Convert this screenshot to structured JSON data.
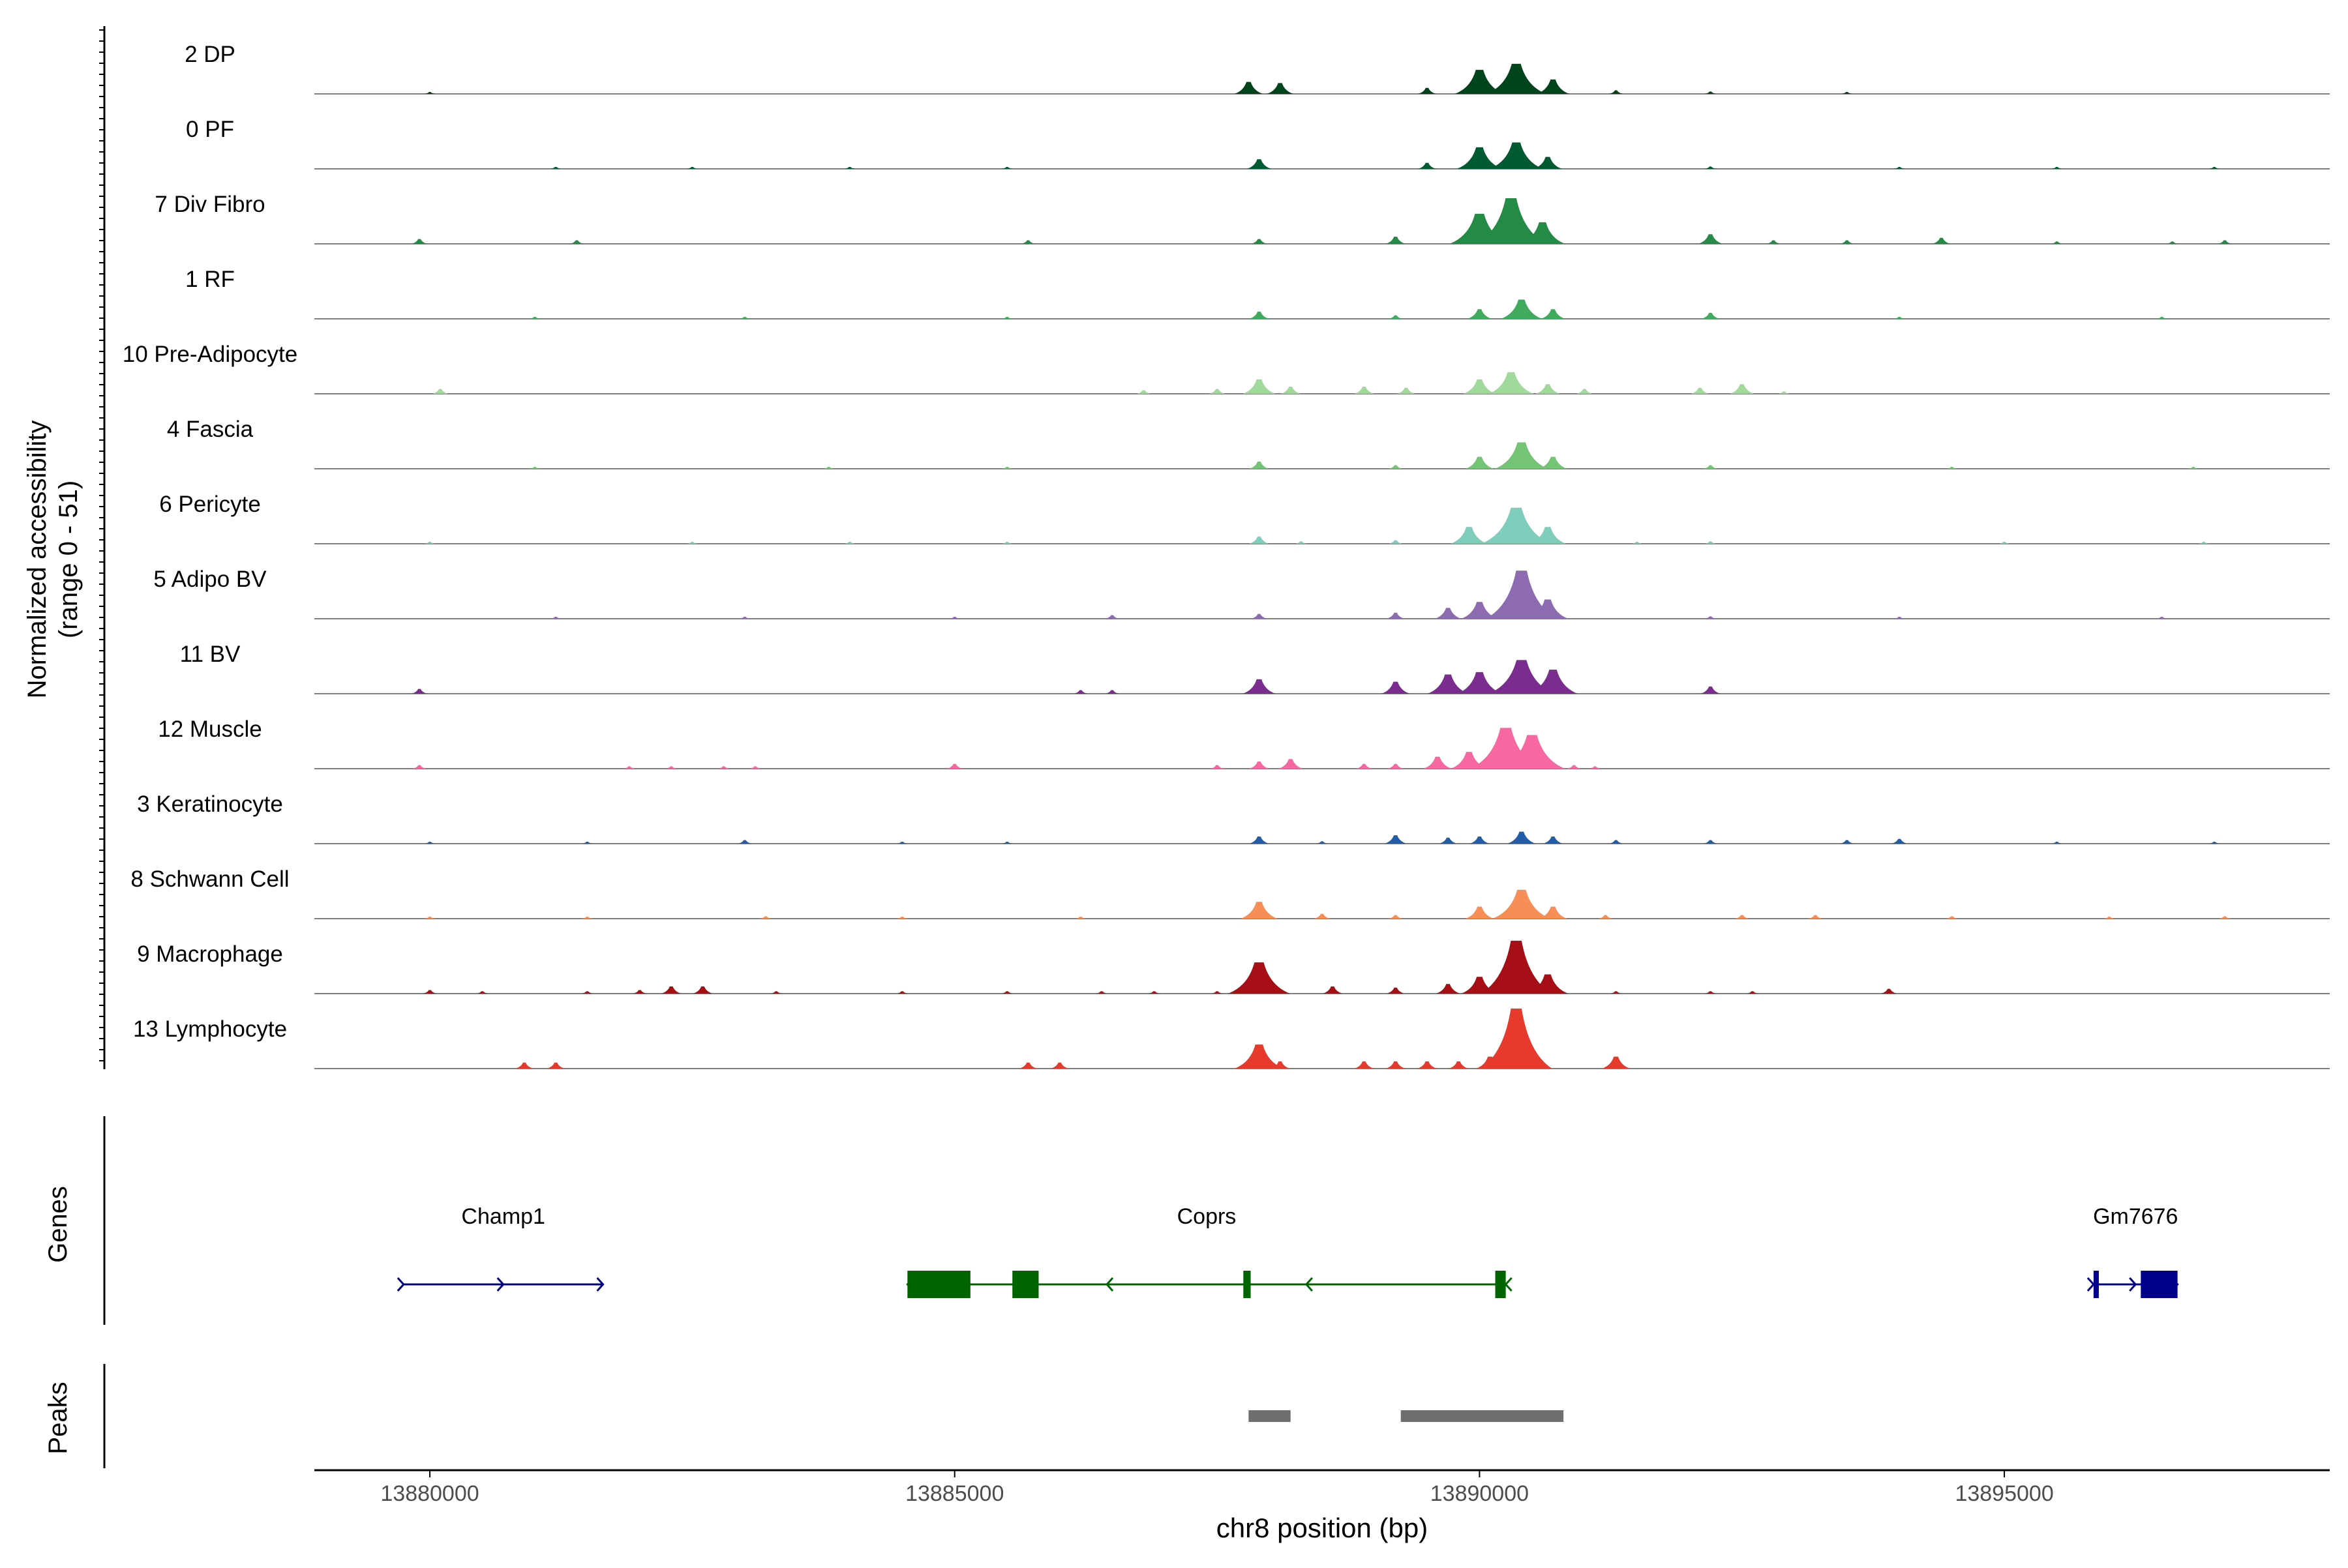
{
  "chart_data": {
    "type": "area",
    "title": "",
    "ylabel_line1": "Normalized accessibility",
    "ylabel_line2": "(range 0 - 51)",
    "y_range": [
      0,
      51
    ],
    "xlabel": "chr8 position (bp)",
    "xlim": [
      13878900,
      13898100
    ],
    "xticks": [
      13880000,
      13885000,
      13890000,
      13895000
    ],
    "xtick_labels": [
      "13880000",
      "13885000",
      "13890000",
      "13895000"
    ],
    "tracks": [
      {
        "name": "2 DP",
        "color": "#00441b",
        "peaks": [
          [
            13880000,
            1.5
          ],
          [
            13887800,
            10
          ],
          [
            13888100,
            9
          ],
          [
            13889500,
            5
          ],
          [
            13890000,
            20
          ],
          [
            13890350,
            25
          ],
          [
            13890700,
            12
          ],
          [
            13891300,
            3
          ],
          [
            13892200,
            2
          ],
          [
            13893500,
            1.5
          ]
        ]
      },
      {
        "name": "0 PF",
        "color": "#005a32",
        "peaks": [
          [
            13881200,
            1.5
          ],
          [
            13882500,
            1.5
          ],
          [
            13884000,
            1.5
          ],
          [
            13885500,
            1.5
          ],
          [
            13887900,
            8
          ],
          [
            13889500,
            5
          ],
          [
            13890000,
            18
          ],
          [
            13890350,
            22
          ],
          [
            13890650,
            10
          ],
          [
            13892200,
            2
          ],
          [
            13894000,
            1.5
          ],
          [
            13895500,
            1.5
          ],
          [
            13897000,
            1.5
          ]
        ]
      },
      {
        "name": "7 Div Fibro",
        "color": "#238b45",
        "peaks": [
          [
            13879900,
            4
          ],
          [
            13881400,
            3
          ],
          [
            13885700,
            3
          ],
          [
            13887900,
            4
          ],
          [
            13889200,
            6
          ],
          [
            13890000,
            25
          ],
          [
            13890300,
            38
          ],
          [
            13890600,
            18
          ],
          [
            13892200,
            8
          ],
          [
            13892800,
            3
          ],
          [
            13893500,
            3
          ],
          [
            13894400,
            5
          ],
          [
            13895500,
            2
          ],
          [
            13896600,
            2
          ],
          [
            13897100,
            3
          ]
        ]
      },
      {
        "name": "1 RF",
        "color": "#41ab5d",
        "peaks": [
          [
            13881000,
            1.5
          ],
          [
            13883000,
            1.5
          ],
          [
            13885500,
            1.5
          ],
          [
            13887900,
            6
          ],
          [
            13889200,
            3
          ],
          [
            13890000,
            8
          ],
          [
            13890400,
            16
          ],
          [
            13890700,
            8
          ],
          [
            13892200,
            5
          ],
          [
            13894000,
            1.5
          ],
          [
            13896500,
            1.5
          ]
        ]
      },
      {
        "name": "10 Pre-Adipocyte",
        "color": "#a1d99b",
        "peaks": [
          [
            13880100,
            4
          ],
          [
            13886800,
            3
          ],
          [
            13887500,
            4
          ],
          [
            13887900,
            12
          ],
          [
            13888200,
            6
          ],
          [
            13888900,
            6
          ],
          [
            13889300,
            5
          ],
          [
            13890000,
            12
          ],
          [
            13890300,
            18
          ],
          [
            13890650,
            8
          ],
          [
            13891000,
            4
          ],
          [
            13892100,
            5
          ],
          [
            13892500,
            8
          ],
          [
            13892900,
            2
          ]
        ]
      },
      {
        "name": "4 Fascia",
        "color": "#74c476",
        "peaks": [
          [
            13881000,
            1.5
          ],
          [
            13883800,
            1.5
          ],
          [
            13885500,
            1.5
          ],
          [
            13887900,
            6
          ],
          [
            13889200,
            3
          ],
          [
            13890000,
            10
          ],
          [
            13890400,
            22
          ],
          [
            13890700,
            10
          ],
          [
            13892200,
            3
          ],
          [
            13894500,
            1.5
          ],
          [
            13896800,
            1.5
          ]
        ]
      },
      {
        "name": "6 Pericyte",
        "color": "#7fcdbb",
        "peaks": [
          [
            13880000,
            1.5
          ],
          [
            13882500,
            1.5
          ],
          [
            13884000,
            1.5
          ],
          [
            13885500,
            1.5
          ],
          [
            13887900,
            6
          ],
          [
            13888300,
            2
          ],
          [
            13889200,
            3
          ],
          [
            13889900,
            14
          ],
          [
            13890350,
            30
          ],
          [
            13890650,
            14
          ],
          [
            13891500,
            1.5
          ],
          [
            13892200,
            2
          ],
          [
            13895000,
            1.5
          ],
          [
            13896900,
            1.5
          ]
        ]
      },
      {
        "name": "5 Adipo BV",
        "color": "#8c6bb1",
        "peaks": [
          [
            13881200,
            1.5
          ],
          [
            13883000,
            1.5
          ],
          [
            13885000,
            1.5
          ],
          [
            13886500,
            3
          ],
          [
            13887900,
            4
          ],
          [
            13889200,
            5
          ],
          [
            13889700,
            9
          ],
          [
            13890000,
            14
          ],
          [
            13890400,
            40
          ],
          [
            13890650,
            16
          ],
          [
            13892200,
            2
          ],
          [
            13894000,
            1.5
          ],
          [
            13896500,
            1.5
          ]
        ]
      },
      {
        "name": "11 BV",
        "color": "#7b2c8f",
        "peaks": [
          [
            13879900,
            4
          ],
          [
            13886200,
            3
          ],
          [
            13886500,
            3
          ],
          [
            13887900,
            12
          ],
          [
            13889200,
            10
          ],
          [
            13889700,
            16
          ],
          [
            13890000,
            18
          ],
          [
            13890400,
            28
          ],
          [
            13890700,
            20
          ],
          [
            13892200,
            6
          ]
        ]
      },
      {
        "name": "12 Muscle",
        "color": "#f768a1",
        "peaks": [
          [
            13879900,
            3
          ],
          [
            13881900,
            2
          ],
          [
            13882300,
            2
          ],
          [
            13882800,
            2
          ],
          [
            13883100,
            2
          ],
          [
            13885000,
            4
          ],
          [
            13887500,
            3
          ],
          [
            13887900,
            6
          ],
          [
            13888200,
            8
          ],
          [
            13888900,
            4
          ],
          [
            13889200,
            4
          ],
          [
            13889600,
            10
          ],
          [
            13889900,
            14
          ],
          [
            13890250,
            34
          ],
          [
            13890500,
            28
          ],
          [
            13890900,
            3
          ],
          [
            13891100,
            2
          ]
        ]
      },
      {
        "name": "3 Keratinocyte",
        "color": "#225ea8",
        "peaks": [
          [
            13880000,
            1.5
          ],
          [
            13881500,
            1.5
          ],
          [
            13883000,
            3
          ],
          [
            13884500,
            1.5
          ],
          [
            13885500,
            1.5
          ],
          [
            13887900,
            6
          ],
          [
            13888500,
            2
          ],
          [
            13889200,
            7
          ],
          [
            13889700,
            5
          ],
          [
            13890000,
            6
          ],
          [
            13890400,
            10
          ],
          [
            13890700,
            6
          ],
          [
            13891300,
            3
          ],
          [
            13892200,
            3
          ],
          [
            13893500,
            3
          ],
          [
            13894000,
            4
          ],
          [
            13895500,
            1.5
          ],
          [
            13897000,
            1.5
          ]
        ]
      },
      {
        "name": "8 Schwann Cell",
        "color": "#f78e55",
        "peaks": [
          [
            13880000,
            1.5
          ],
          [
            13881500,
            1.5
          ],
          [
            13883200,
            2
          ],
          [
            13884500,
            1.5
          ],
          [
            13886200,
            1.5
          ],
          [
            13887900,
            14
          ],
          [
            13888500,
            4
          ],
          [
            13889200,
            3
          ],
          [
            13890000,
            10
          ],
          [
            13890400,
            24
          ],
          [
            13890700,
            10
          ],
          [
            13891200,
            3
          ],
          [
            13892500,
            3
          ],
          [
            13893200,
            3
          ],
          [
            13894500,
            2
          ],
          [
            13896000,
            1.5
          ],
          [
            13897100,
            2
          ]
        ]
      },
      {
        "name": "9 Macrophage",
        "color": "#a50f15",
        "peaks": [
          [
            13880000,
            3
          ],
          [
            13880500,
            2
          ],
          [
            13881500,
            2
          ],
          [
            13882000,
            3
          ],
          [
            13882300,
            6
          ],
          [
            13882600,
            6
          ],
          [
            13883300,
            2
          ],
          [
            13884500,
            2
          ],
          [
            13885500,
            2
          ],
          [
            13886400,
            2
          ],
          [
            13886900,
            2
          ],
          [
            13887500,
            2
          ],
          [
            13887900,
            26
          ],
          [
            13888600,
            6
          ],
          [
            13889200,
            5
          ],
          [
            13889700,
            8
          ],
          [
            13890000,
            14
          ],
          [
            13890350,
            44
          ],
          [
            13890650,
            16
          ],
          [
            13891300,
            2
          ],
          [
            13892200,
            2
          ],
          [
            13892600,
            2
          ],
          [
            13893900,
            4
          ]
        ]
      },
      {
        "name": "13 Lymphocyte",
        "color": "#e53a2c",
        "peaks": [
          [
            13880900,
            5
          ],
          [
            13881200,
            5
          ],
          [
            13885700,
            5
          ],
          [
            13886000,
            5
          ],
          [
            13887900,
            20
          ],
          [
            13888100,
            6
          ],
          [
            13888900,
            6
          ],
          [
            13889200,
            6
          ],
          [
            13889500,
            6
          ],
          [
            13889800,
            6
          ],
          [
            13890100,
            10
          ],
          [
            13890350,
            50
          ],
          [
            13891300,
            10
          ]
        ]
      }
    ],
    "genes_label": "Genes",
    "genes": [
      {
        "name": "Champ1",
        "color": "#000080",
        "strand": "+",
        "start": 13879750,
        "end": 13881650,
        "exons": []
      },
      {
        "name": "Coprs",
        "color": "#006400",
        "strand": "-",
        "start": 13884550,
        "end": 13890250,
        "exons": [
          [
            13884550,
            13885150
          ],
          [
            13885550,
            13885800
          ],
          [
            13887750,
            13887820
          ],
          [
            13890150,
            13890250
          ]
        ]
      },
      {
        "name": "Gm7676",
        "color": "#00008b",
        "strand": "+",
        "start": 13895850,
        "end": 13896650,
        "exons": [
          [
            13895850,
            13895900
          ],
          [
            13896300,
            13896650
          ]
        ]
      }
    ],
    "peaks_label": "Peaks",
    "peak_regions": [
      [
        13887800,
        13888200
      ],
      [
        13889250,
        13890800
      ]
    ],
    "legend": "none"
  }
}
